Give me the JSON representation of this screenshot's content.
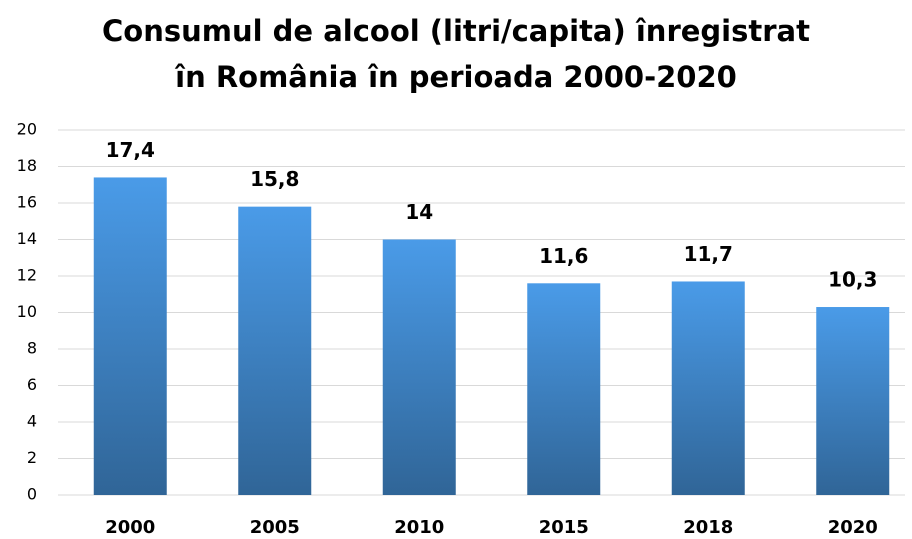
{
  "chart_data": {
    "type": "bar",
    "title": "Consumul de alcool (litri/capita) înregistrat în România în perioada 2000-2020",
    "categories": [
      "2000",
      "2005",
      "2010",
      "2015",
      "2018",
      "2020"
    ],
    "values": [
      17.4,
      15.8,
      14,
      11.6,
      11.7,
      10.3
    ],
    "value_labels": [
      "17,4",
      "15,8",
      "14",
      "11,6",
      "11,7",
      "10,3"
    ],
    "color": "#4a9be8",
    "ylim": [
      0,
      20
    ],
    "yticks": [
      0,
      2,
      4,
      6,
      8,
      10,
      12,
      14,
      16,
      18,
      20
    ],
    "grid": true
  }
}
